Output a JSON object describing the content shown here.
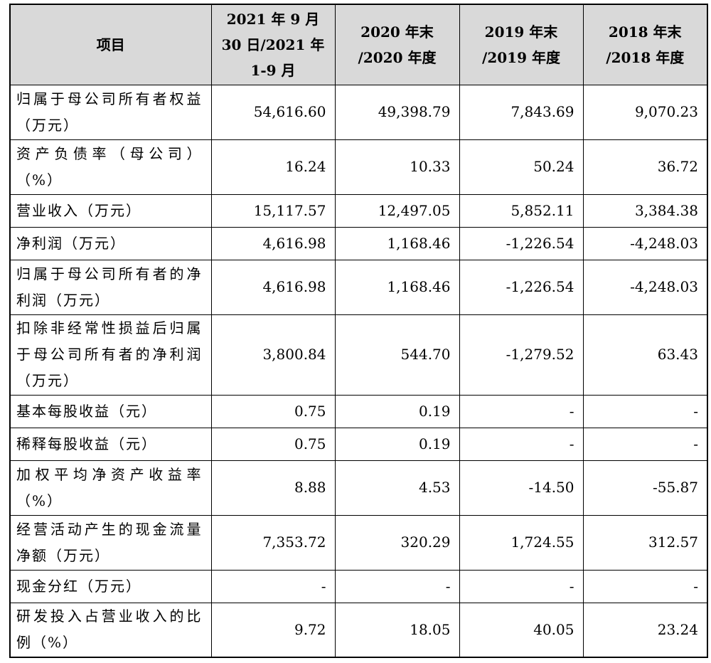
{
  "table": {
    "headers": [
      [
        "项目"
      ],
      [
        "2021 年 9 月",
        "30 日/2021 年",
        "1-9 月"
      ],
      [
        "2020 年末",
        "/2020 年度"
      ],
      [
        "2019 年末",
        "/2019 年度"
      ],
      [
        "2018 年末",
        "/2018 年度"
      ]
    ],
    "rows": [
      {
        "label": "归属于母公司所有者权益（万元）",
        "values": [
          "54,616.60",
          "49,398.79",
          "7,843.69",
          "9,070.23"
        ]
      },
      {
        "label": "资产负债率（母公司）（%）",
        "values": [
          "16.24",
          "10.33",
          "50.24",
          "36.72"
        ]
      },
      {
        "label": "营业收入（万元）",
        "values": [
          "15,117.57",
          "12,497.05",
          "5,852.11",
          "3,384.38"
        ]
      },
      {
        "label": "净利润（万元）",
        "values": [
          "4,616.98",
          "1,168.46",
          "-1,226.54",
          "-4,248.03"
        ]
      },
      {
        "label": "归属于母公司所有者的净利润（万元）",
        "values": [
          "4,616.98",
          "1,168.46",
          "-1,226.54",
          "-4,248.03"
        ]
      },
      {
        "label": "扣除非经常性损益后归属于母公司所有者的净利润（万元）",
        "values": [
          "3,800.84",
          "544.70",
          "-1,279.52",
          "63.43"
        ]
      },
      {
        "label": "基本每股收益（元）",
        "values": [
          "0.75",
          "0.19",
          "-",
          "-"
        ]
      },
      {
        "label": "稀释每股收益（元）",
        "values": [
          "0.75",
          "0.19",
          "-",
          "-"
        ]
      },
      {
        "label": "加权平均净资产收益率（%）",
        "values": [
          "8.88",
          "4.53",
          "-14.50",
          "-55.87"
        ]
      },
      {
        "label": "经营活动产生的现金流量净额（万元）",
        "values": [
          "7,353.72",
          "320.29",
          "1,724.55",
          "312.57"
        ]
      },
      {
        "label": "现金分红（万元）",
        "values": [
          "-",
          "-",
          "-",
          "-"
        ]
      },
      {
        "label": "研发投入占营业收入的比例（%）",
        "values": [
          "9.72",
          "18.05",
          "40.05",
          "23.24"
        ]
      }
    ]
  }
}
